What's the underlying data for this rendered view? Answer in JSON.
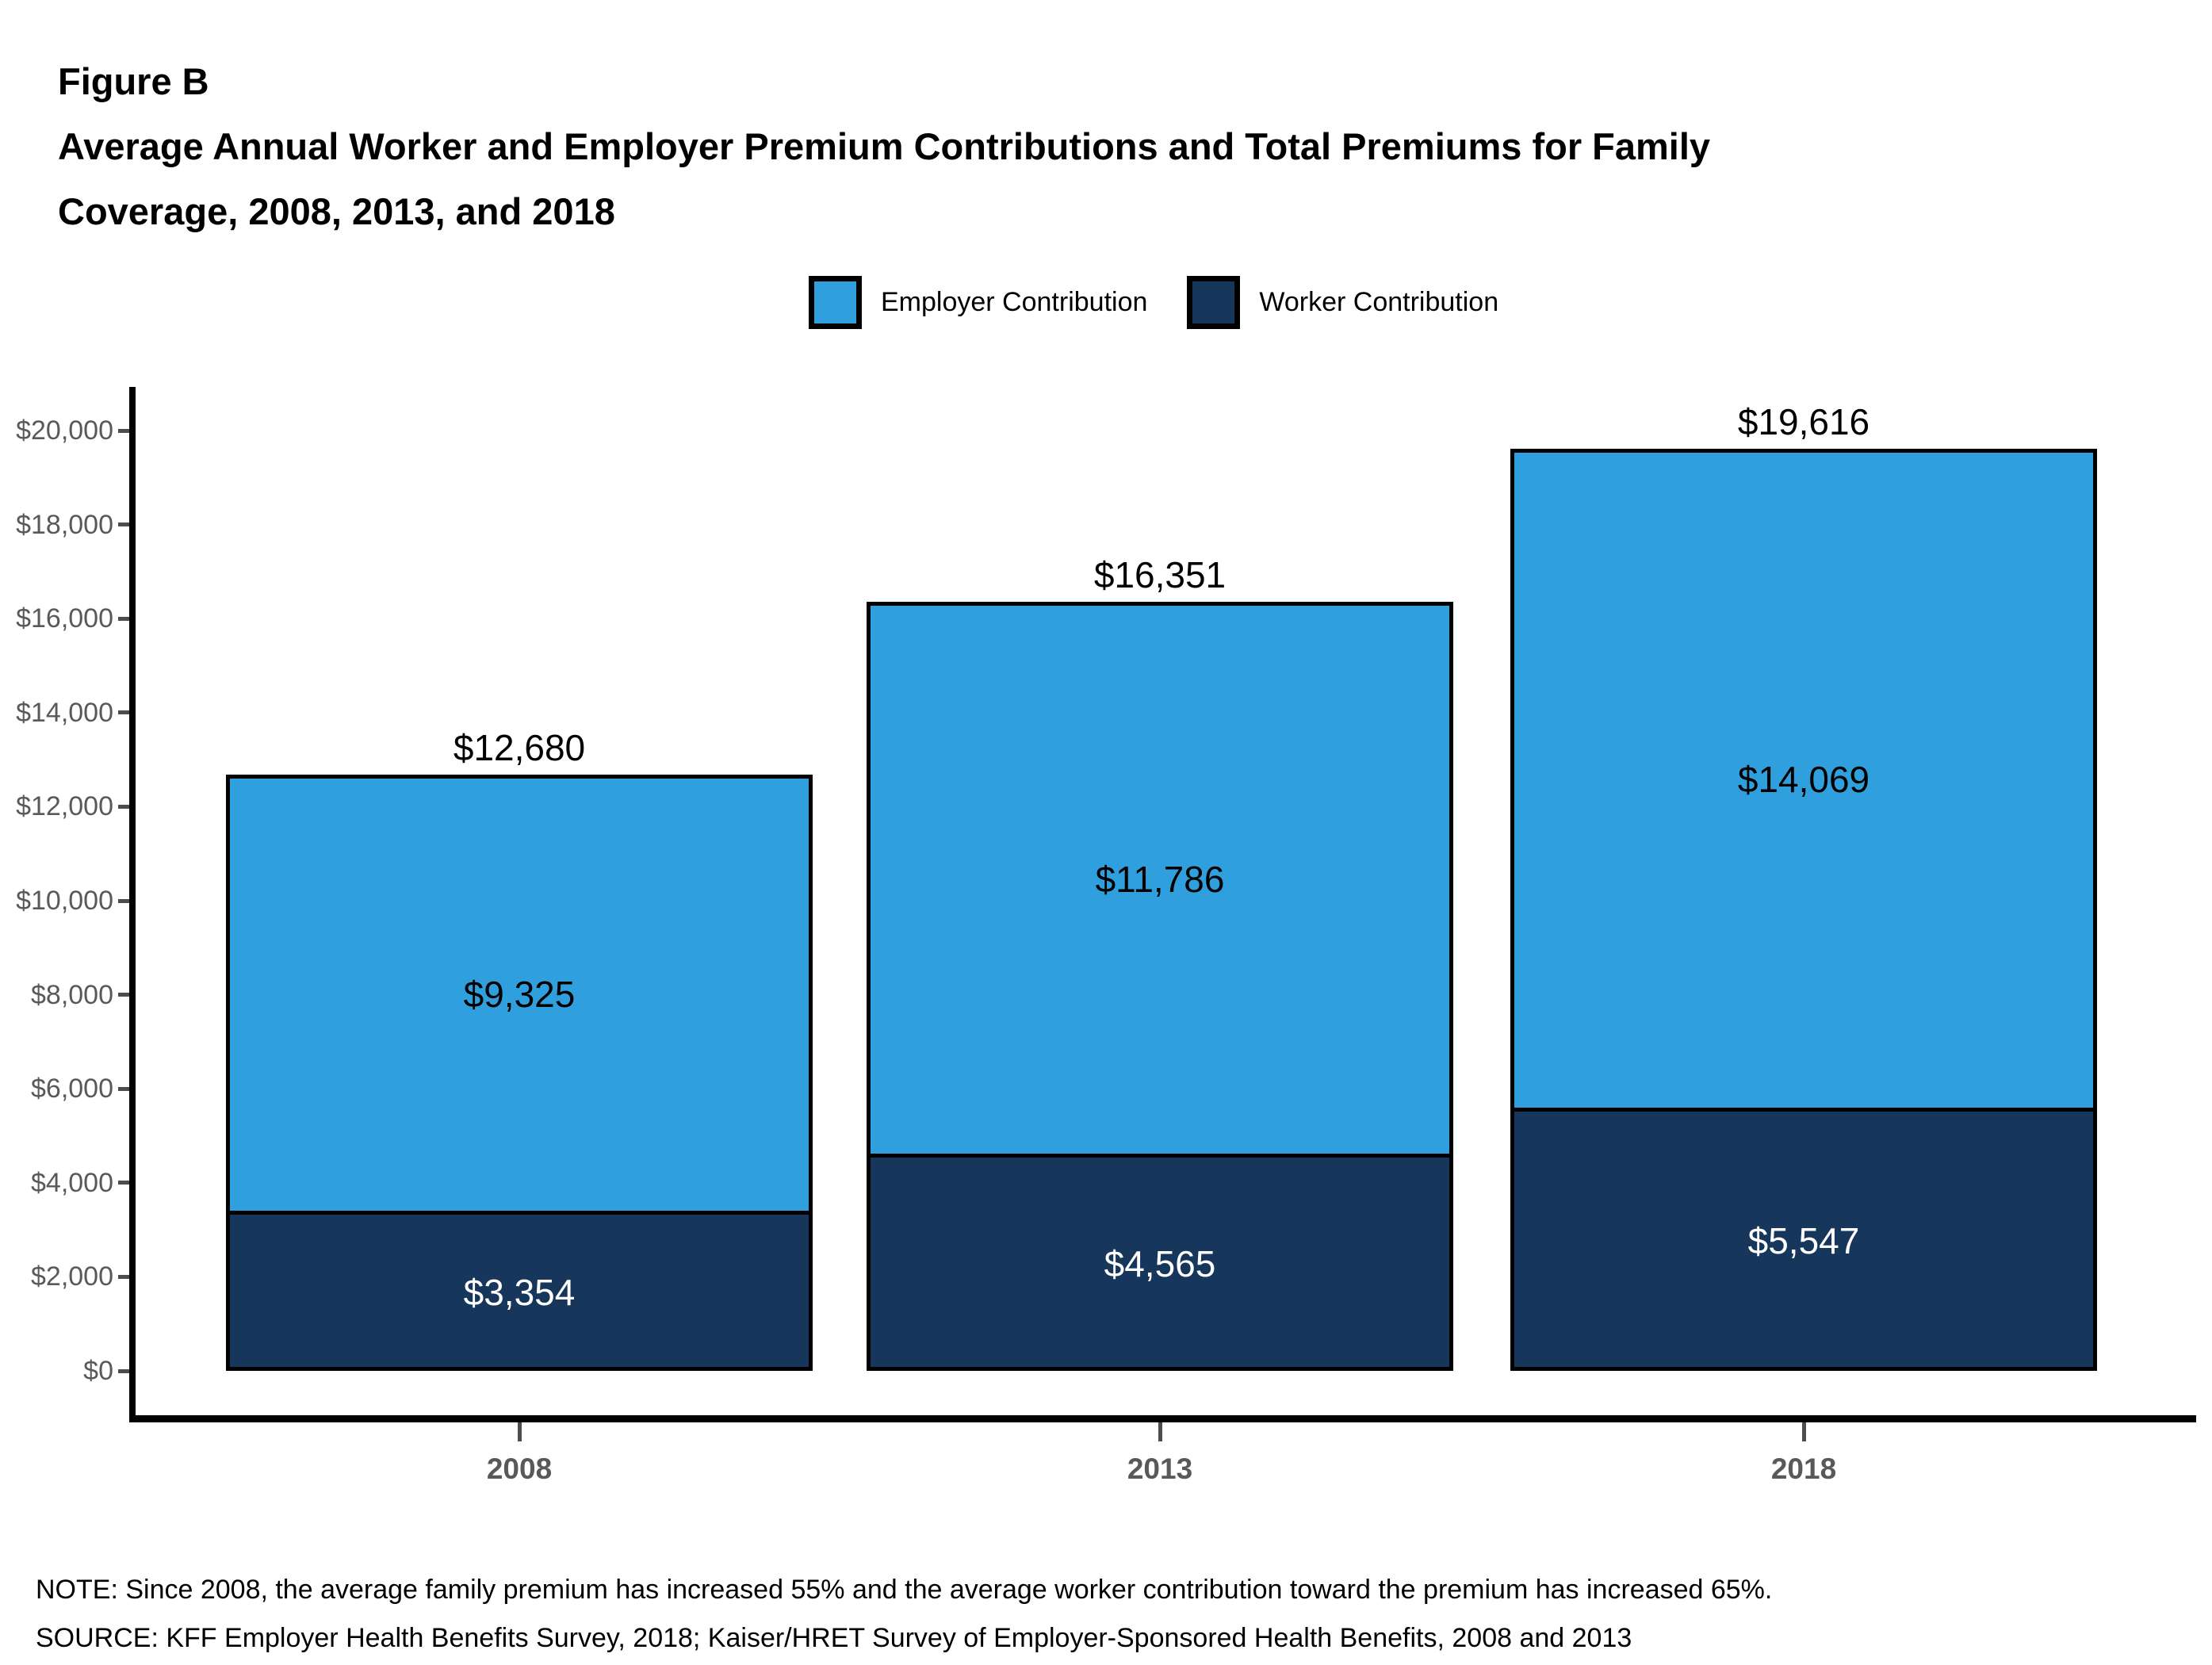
{
  "header": {
    "figure_label": "Figure B",
    "title_line1": "Average Annual Worker and Employer Premium Contributions and Total Premiums for Family",
    "title_line2": "Coverage, 2008, 2013, and 2018"
  },
  "legend": {
    "items": [
      "Employer Contribution",
      "Worker Contribution"
    ]
  },
  "footer": {
    "note": "NOTE: Since 2008, the average family premium has increased 55% and the average worker contribution toward the premium has increased 65%.",
    "source": "SOURCE: KFF Employer Health Benefits Survey, 2018; Kaiser/HRET Survey of Employer-Sponsored Health Benefits, 2008 and 2013"
  },
  "colors": {
    "employer_blue": "#2F9FDE",
    "worker_navy": "#17365C",
    "axis_black": "#000000",
    "tick_gray": "#4D4D4D",
    "tick_label_gray": "#595959",
    "year_label_gray": "#58595B"
  },
  "chart_data": {
    "type": "bar",
    "stacked": true,
    "title": "Average Annual Worker and Employer Premium Contributions and Total Premiums for Family Coverage, 2008, 2013, and 2018",
    "categories": [
      "2008",
      "2013",
      "2018"
    ],
    "series": [
      {
        "name": "Worker Contribution",
        "values": [
          3354,
          4565,
          5547
        ],
        "color": "#17365C",
        "label_color": "#FFFFFF"
      },
      {
        "name": "Employer Contribution",
        "values": [
          9325,
          11786,
          14069
        ],
        "color": "#2F9FDE",
        "label_color": "#000000"
      }
    ],
    "totals": [
      12680,
      16351,
      19616
    ],
    "value_prefix": "$",
    "xlabel": "",
    "ylabel": "",
    "ylim": [
      0,
      20000
    ],
    "ytick_step": 2000,
    "grid": false,
    "legend_position": "top-center",
    "bar_value_labels": "centered-in-segment, total above bar"
  }
}
